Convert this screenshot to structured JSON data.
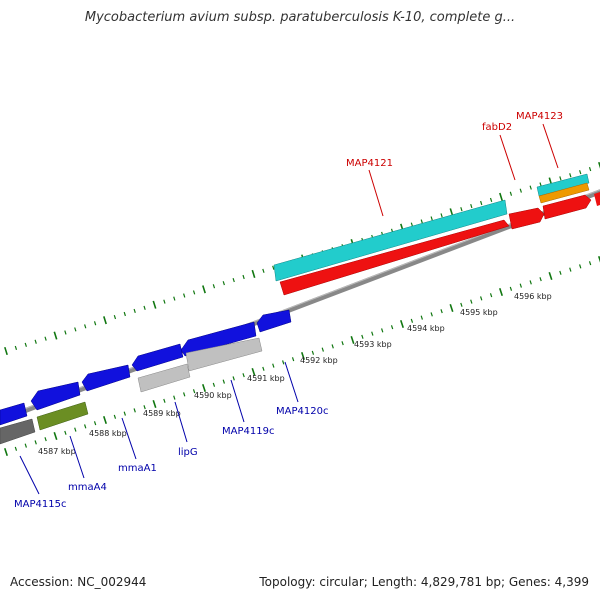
{
  "title": "Mycobacterium avium subsp. paratuberculosis K-10, complete g...",
  "footer": {
    "accession": "Accession: NC_002944",
    "summary": "Topology: circular; Length: 4,829,781 bp; Genes: 4,399"
  },
  "ticks": [
    "4587 kbp",
    "4588 kbp",
    "4589 kbp",
    "4590 kbp",
    "4591 kbp",
    "4592 kbp",
    "4593 kbp",
    "4594 kbp",
    "4595 kbp",
    "4596 kbp"
  ],
  "gene_labels": {
    "forward": [
      "MAP4121",
      "fabD2",
      "MAP4123"
    ],
    "reverse": [
      "MAP4115c",
      "mmaA4",
      "mmaA1",
      "lipG",
      "MAP4119c",
      "MAP4120c"
    ]
  },
  "colors": {
    "forward_label": "#cc0000",
    "reverse_label": "#0000aa",
    "backbone": "#888888",
    "forward_gene": "#ee1111",
    "cds_cyan": "#22cccc",
    "reverse_gene": "#1111dd",
    "tick": "#117711",
    "orange": "#ee9900",
    "olive": "#6b8e23",
    "gray_gene": "#c0c0c0"
  }
}
